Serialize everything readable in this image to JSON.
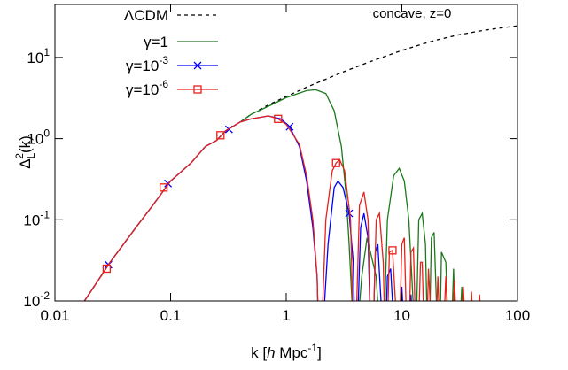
{
  "chart_data": {
    "type": "line",
    "annotation": "concave, z=0",
    "xlabel": [
      "k [",
      "h",
      " Mpc",
      "-1",
      "]"
    ],
    "ylabel": [
      "Δ",
      "L",
      "2",
      "(k)"
    ],
    "log_x": true,
    "log_y": true,
    "xlim": [
      0.01,
      100
    ],
    "xticks": [
      0.01,
      0.1,
      1,
      10,
      100
    ],
    "ylim": [
      0.01,
      45
    ],
    "yticks": [
      {
        "value": 0.01,
        "label": "10",
        "exponent": "-2"
      },
      {
        "value": 0.1,
        "label": "10",
        "exponent": "-1"
      },
      {
        "value": 1,
        "label": "10",
        "exponent": "0"
      },
      {
        "value": 10,
        "label": "10",
        "exponent": "1"
      }
    ],
    "legend": "top-left",
    "series": [
      {
        "name": "ΛCDM",
        "color": "#000000",
        "dash": "dashed",
        "x": [
          0.018,
          0.02,
          0.03,
          0.05,
          0.07,
          0.1,
          0.15,
          0.2,
          0.25,
          0.3,
          0.4,
          0.5,
          0.7,
          1,
          1.5,
          2,
          3,
          5,
          7,
          10,
          15,
          20,
          30,
          50,
          70,
          100
        ],
        "values": [
          0.01,
          0.0125,
          0.03,
          0.08,
          0.15,
          0.3,
          0.5,
          0.8,
          0.95,
          1.25,
          1.6,
          2,
          2.6,
          3.3,
          4.3,
          5.1,
          6.5,
          8.6,
          10.2,
          12.2,
          14.6,
          16.4,
          18.8,
          21.5,
          23,
          24.5
        ]
      },
      {
        "name": "γ=1",
        "color": "#1a7a1a",
        "dash": "solid",
        "x": [
          0.018,
          0.02,
          0.03,
          0.05,
          0.07,
          0.1,
          0.15,
          0.2,
          0.25,
          0.3,
          0.4,
          0.5,
          0.7,
          1,
          1.5,
          1.8,
          2.2,
          2.6,
          3,
          3.3,
          3.5,
          3.7,
          3.8,
          4.5,
          5,
          6,
          6.8,
          7.5,
          8.5,
          9.5,
          10.5,
          11.5,
          12.5,
          13,
          14,
          15,
          16,
          17,
          18,
          19,
          21,
          22,
          24,
          26,
          28,
          30,
          33,
          36,
          40,
          44
        ],
        "values": [
          0.01,
          0.0125,
          0.03,
          0.08,
          0.15,
          0.3,
          0.5,
          0.8,
          0.95,
          1.25,
          1.6,
          2,
          2.5,
          3.2,
          3.9,
          4,
          3.6,
          2.2,
          0.8,
          0.2,
          0.05,
          0.01,
          0.001,
          0.02,
          0.06,
          0.02,
          0.001,
          0.1,
          0.35,
          0.43,
          0.3,
          0.1,
          0.01,
          0.001,
          0.1,
          0.12,
          0.05,
          0.001,
          0.06,
          0.07,
          0.001,
          0.04,
          0.03,
          0.001,
          0.025,
          0.001,
          0.015,
          0.001,
          0.012,
          0.001
        ]
      },
      {
        "name": "γ=10",
        "name_sup": "-3",
        "color": "#0000ff",
        "dash": "solid",
        "x": [
          0.018,
          0.02,
          0.03,
          0.05,
          0.07,
          0.1,
          0.15,
          0.2,
          0.25,
          0.3,
          0.4,
          0.5,
          0.7,
          0.9,
          1.07,
          1.3,
          1.5,
          1.7,
          1.85,
          1.95,
          2.3,
          2.6,
          2.8,
          3.1,
          3.5,
          3.8,
          4,
          4.4,
          4.7,
          5.1,
          5.5,
          5.9,
          6.2,
          6.6,
          7,
          7.5,
          8,
          8.5,
          9,
          10,
          11,
          12,
          13
        ],
        "values": [
          0.01,
          0.0125,
          0.03,
          0.08,
          0.15,
          0.3,
          0.5,
          0.8,
          0.95,
          1.25,
          1.6,
          1.75,
          1.9,
          1.75,
          1.4,
          0.8,
          0.3,
          0.08,
          0.02,
          0.001,
          0.05,
          0.25,
          0.3,
          0.25,
          0.12,
          0.03,
          0.001,
          0.08,
          0.12,
          0.06,
          0.001,
          0.04,
          0.05,
          0.01,
          0.001,
          0.02,
          0.025,
          0.005,
          0.001,
          0.015,
          0.001,
          0.012,
          0.001
        ],
        "points": {
          "x": [
            0.029,
            0.095,
            0.32,
            1.07,
            3.5
          ],
          "values": [
            0.028,
            0.28,
            1.3,
            1.4,
            0.12
          ],
          "marker": "cross"
        }
      },
      {
        "name": "γ=10",
        "name_sup": "-6",
        "color": "#e8211a",
        "dash": "solid",
        "x": [
          0.018,
          0.02,
          0.03,
          0.05,
          0.07,
          0.1,
          0.15,
          0.2,
          0.25,
          0.3,
          0.4,
          0.5,
          0.7,
          0.85,
          1,
          1.3,
          1.5,
          1.7,
          1.85,
          1.95,
          2.2,
          2.5,
          2.7,
          2.9,
          3.2,
          3.6,
          3.9,
          4.3,
          4.7,
          5.1,
          5.5,
          6,
          6.4,
          6.9,
          7.3,
          7.8,
          8.3,
          8.8,
          9.3,
          10,
          10.5,
          11.3,
          12,
          12.6,
          13.5,
          14.5,
          15,
          16,
          17,
          19,
          20.5,
          22,
          24,
          26,
          28.5,
          31,
          34,
          37,
          40,
          43,
          47,
          51,
          55
        ],
        "values": [
          0.01,
          0.0125,
          0.03,
          0.08,
          0.15,
          0.3,
          0.5,
          0.8,
          0.95,
          1.25,
          1.6,
          1.75,
          1.9,
          1.75,
          1.5,
          0.85,
          0.35,
          0.1,
          0.02,
          0.001,
          0.1,
          0.4,
          0.5,
          0.55,
          0.4,
          0.1,
          0.001,
          0.15,
          0.22,
          0.1,
          0.001,
          0.1,
          0.12,
          0.03,
          0.001,
          0.04,
          0.042,
          0.01,
          0.001,
          0.05,
          0.06,
          0.001,
          0.04,
          0.045,
          0.001,
          0.03,
          0.03,
          0.001,
          0.025,
          0.001,
          0.02,
          0.001,
          0.02,
          0.001,
          0.018,
          0.001,
          0.015,
          0.001,
          0.013,
          0.001,
          0.012,
          0.001,
          0.01
        ],
        "points": {
          "x": [
            0.028,
            0.087,
            0.27,
            0.85,
            2.7,
            8.3
          ],
          "values": [
            0.025,
            0.25,
            1.1,
            1.75,
            0.5,
            0.042
          ],
          "marker": "square"
        }
      }
    ]
  }
}
